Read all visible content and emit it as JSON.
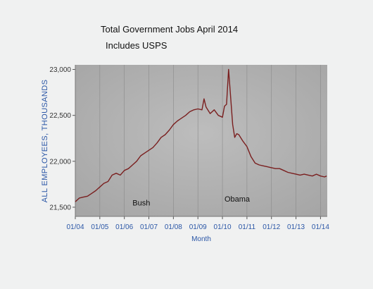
{
  "chart_data": {
    "type": "line",
    "title": "Total Government Jobs April 2014",
    "subtitle": "Includes USPS",
    "xlabel": "Month",
    "ylabel": "ALL EMPLOYEES, THOUSANDS",
    "ylim": [
      21400,
      23050
    ],
    "yticks": [
      21500,
      22000,
      22500,
      23000
    ],
    "ytick_labels": [
      "21,500",
      "22,000",
      "22,500",
      "23,000"
    ],
    "xticks": [
      "2004-01",
      "2005-01",
      "2006-01",
      "2007-01",
      "2008-01",
      "2009-01",
      "2010-01",
      "2011-01",
      "2012-01",
      "2013-01",
      "2014-01"
    ],
    "xtick_labels": [
      "01/04",
      "01/05",
      "01/06",
      "01/07",
      "01/08",
      "01/09",
      "01/10",
      "01/11",
      "01/12",
      "01/13",
      "01/14"
    ],
    "grid": "vertical",
    "line_color": "#7a1f1f",
    "annotations": [
      {
        "text": "Bush",
        "x": "2006-05",
        "y": 21520
      },
      {
        "text": "Obama",
        "x": "2010-02",
        "y": 21560
      }
    ],
    "series": [
      {
        "x": [
          "2004-01",
          "2004-03",
          "2004-05",
          "2004-07",
          "2004-09",
          "2004-11",
          "2005-01",
          "2005-03",
          "2005-05",
          "2005-07",
          "2005-09",
          "2005-11",
          "2006-01",
          "2006-03",
          "2006-05",
          "2006-07",
          "2006-09",
          "2006-11",
          "2007-01",
          "2007-03",
          "2007-05",
          "2007-07",
          "2007-09",
          "2007-11",
          "2008-01",
          "2008-03",
          "2008-05",
          "2008-07",
          "2008-09",
          "2008-11",
          "2009-01",
          "2009-03",
          "2009-04",
          "2009-05",
          "2009-07",
          "2009-09",
          "2009-11",
          "2010-01",
          "2010-02",
          "2010-03",
          "2010-04",
          "2010-05",
          "2010-06",
          "2010-07",
          "2010-08",
          "2010-09",
          "2010-11",
          "2011-01",
          "2011-03",
          "2011-05",
          "2011-07",
          "2011-09",
          "2011-11",
          "2012-01",
          "2012-03",
          "2012-05",
          "2012-07",
          "2012-09",
          "2012-11",
          "2013-01",
          "2013-03",
          "2013-05",
          "2013-07",
          "2013-09",
          "2013-11",
          "2014-01",
          "2014-03",
          "2014-04"
        ],
        "values": [
          21560,
          21600,
          21610,
          21620,
          21650,
          21680,
          21720,
          21760,
          21780,
          21850,
          21870,
          21850,
          21900,
          21920,
          21960,
          22000,
          22060,
          22090,
          22120,
          22150,
          22200,
          22260,
          22290,
          22340,
          22400,
          22440,
          22470,
          22500,
          22540,
          22560,
          22570,
          22560,
          22680,
          22590,
          22520,
          22560,
          22500,
          22480,
          22600,
          22620,
          23000,
          22700,
          22400,
          22260,
          22300,
          22290,
          22220,
          22160,
          22050,
          21980,
          21960,
          21950,
          21940,
          21930,
          21920,
          21920,
          21900,
          21880,
          21870,
          21860,
          21850,
          21860,
          21850,
          21840,
          21860,
          21840,
          21830,
          21840
        ]
      }
    ]
  }
}
